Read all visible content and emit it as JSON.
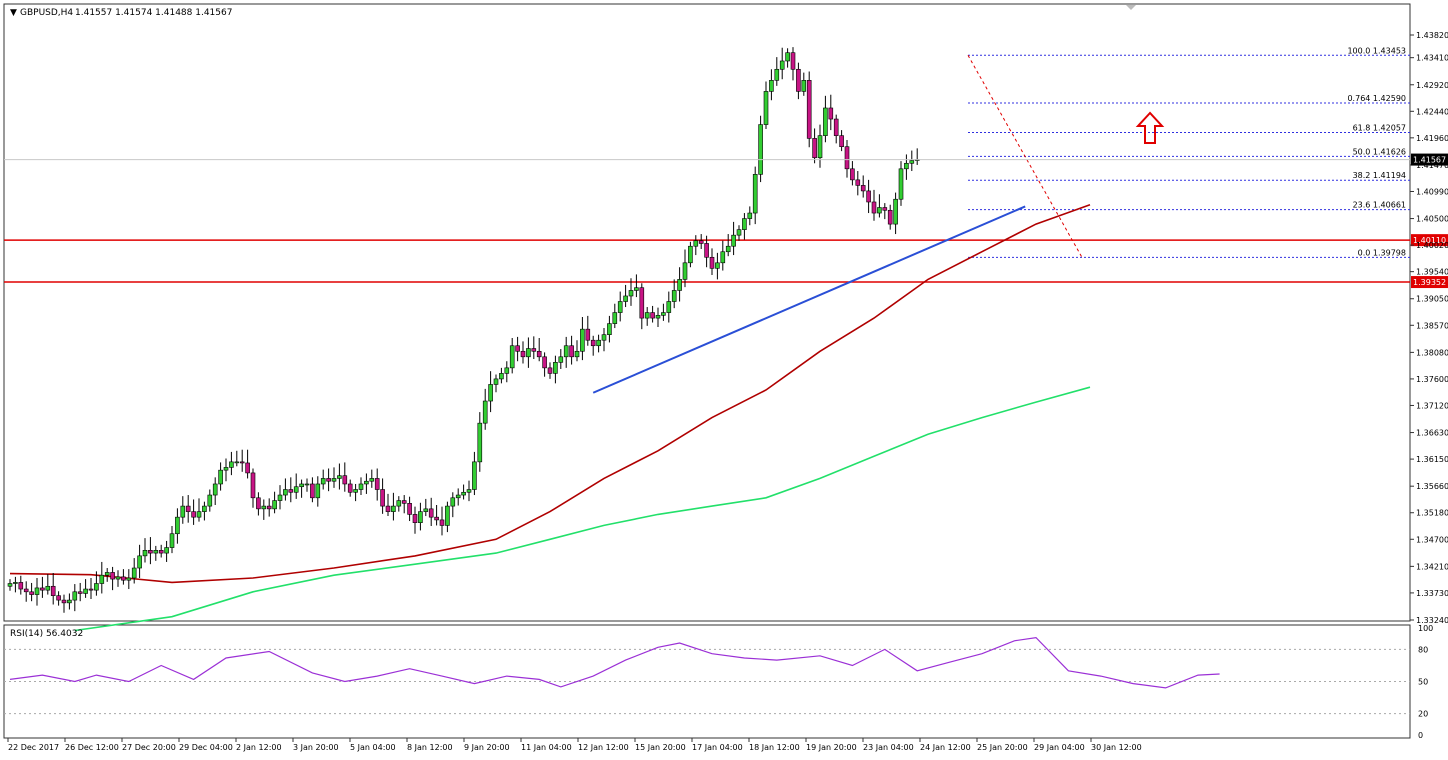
{
  "header": {
    "symbol": "GBPUSD,H4",
    "ohlc": "1.41557 1.41574 1.41488 1.41567"
  },
  "colors": {
    "bull": "#32cd32",
    "bear": "#c71585",
    "ma_fast": "#b00000",
    "ma_slow": "#22e06a",
    "trendline": "#2a4fd6",
    "support": "#e00000",
    "fib": "#3030e0",
    "rsi": "#9b30d6",
    "arrow": "#e00000"
  },
  "chart_data": {
    "type": "candlestick",
    "instrument": "GBPUSD",
    "timeframe": "H4",
    "ylim": [
      1.3324,
      1.4382
    ],
    "y_ticks": [
      "1.43820",
      "1.43410",
      "1.42920",
      "1.42440",
      "1.41960",
      "1.41470",
      "1.40990",
      "1.40500",
      "1.40020",
      "1.39540",
      "1.39050",
      "1.38570",
      "1.38080",
      "1.37600",
      "1.37120",
      "1.36630",
      "1.36150",
      "1.35660",
      "1.35180",
      "1.34700",
      "1.34210",
      "1.33730",
      "1.33240"
    ],
    "x_labels": [
      "22 Dec 2017",
      "26 Dec 12:00",
      "27 Dec 20:00",
      "29 Dec 04:00",
      "2 Jan 12:00",
      "3 Jan 20:00",
      "5 Jan 04:00",
      "8 Jan 12:00",
      "9 Jan 20:00",
      "11 Jan 04:00",
      "12 Jan 12:00",
      "15 Jan 20:00",
      "17 Jan 04:00",
      "18 Jan 12:00",
      "19 Jan 20:00",
      "23 Jan 04:00",
      "24 Jan 12:00",
      "25 Jan 20:00",
      "29 Jan 04:00",
      "30 Jan 12:00"
    ],
    "current_price": "1.41567",
    "closes": [
      1.339,
      1.3392,
      1.338,
      1.3375,
      1.337,
      1.3382,
      1.3378,
      1.3385,
      1.3368,
      1.336,
      1.3355,
      1.336,
      1.3375,
      1.3372,
      1.338,
      1.3378,
      1.339,
      1.3405,
      1.341,
      1.3398,
      1.3402,
      1.3396,
      1.34,
      1.3418,
      1.344,
      1.345,
      1.3445,
      1.345,
      1.3445,
      1.3455,
      1.348,
      1.351,
      1.353,
      1.352,
      1.351,
      1.352,
      1.353,
      1.355,
      1.357,
      1.3595,
      1.36,
      1.361,
      1.361,
      1.3608,
      1.359,
      1.3545,
      1.3525,
      1.353,
      1.3525,
      1.354,
      1.355,
      1.356,
      1.3555,
      1.3565,
      1.357,
      1.357,
      1.3545,
      1.357,
      1.358,
      1.3575,
      1.358,
      1.3585,
      1.357,
      1.3555,
      1.356,
      1.357,
      1.3575,
      1.358,
      1.356,
      1.353,
      1.352,
      1.353,
      1.354,
      1.3535,
      1.3515,
      1.35,
      1.352,
      1.3525,
      1.351,
      1.3505,
      1.3495,
      1.353,
      1.3545,
      1.355,
      1.3555,
      1.356,
      1.361,
      1.368,
      1.372,
      1.375,
      1.376,
      1.377,
      1.378,
      1.382,
      1.381,
      1.38,
      1.3815,
      1.381,
      1.38,
      1.378,
      1.377,
      1.379,
      1.38,
      1.382,
      1.38,
      1.381,
      1.385,
      1.383,
      1.382,
      1.383,
      1.384,
      1.386,
      1.388,
      1.39,
      1.391,
      1.392,
      1.3925,
      1.387,
      1.388,
      1.387,
      1.3875,
      1.388,
      1.39,
      1.392,
      1.394,
      1.397,
      1.4,
      1.401,
      1.4005,
      1.398,
      1.396,
      1.397,
      1.399,
      1.4,
      1.402,
      1.403,
      1.405,
      1.406,
      1.413,
      1.422,
      1.428,
      1.43,
      1.432,
      1.4335,
      1.435,
      1.432,
      1.428,
      1.43,
      1.4195,
      1.416,
      1.42,
      1.425,
      1.423,
      1.42,
      1.418,
      1.414,
      1.412,
      1.411,
      1.41,
      1.408,
      1.406,
      1.407,
      1.4065,
      1.404,
      1.4085,
      1.414,
      1.415,
      1.4155,
      1.4157
    ],
    "fib_levels": [
      {
        "label": "100.0 1.43453",
        "price": 1.43453
      },
      {
        "label": "0.764 1.42590",
        "price": 1.4259
      },
      {
        "label": "61.8 1.42057",
        "price": 1.42057
      },
      {
        "label": "50.0 1.41626",
        "price": 1.41626
      },
      {
        "label": "38.2 1.41194",
        "price": 1.41194
      },
      {
        "label": "23.6 1.40661",
        "price": 1.40661
      },
      {
        "label": "0.0 1.39798",
        "price": 1.39798
      }
    ],
    "support_levels": [
      {
        "label": "1.40110",
        "price": 1.4011
      },
      {
        "label": "1.39352",
        "price": 1.39352
      }
    ],
    "trendline": {
      "start": {
        "bar": 108,
        "price": 1.3735
      },
      "end": {
        "bar": 188,
        "price": 1.4072
      }
    },
    "moving_averages": [
      {
        "points": [
          [
            0,
            1.3408
          ],
          [
            15,
            1.3406
          ],
          [
            30,
            1.3392
          ],
          [
            45,
            1.34
          ],
          [
            60,
            1.3418
          ],
          [
            75,
            1.344
          ],
          [
            90,
            1.347
          ],
          [
            100,
            1.352
          ],
          [
            110,
            1.358
          ],
          [
            120,
            1.363
          ],
          [
            130,
            1.369
          ],
          [
            140,
            1.374
          ],
          [
            150,
            1.381
          ],
          [
            160,
            1.387
          ],
          [
            170,
            1.394
          ],
          [
            180,
            1.399
          ],
          [
            190,
            1.404
          ],
          [
            200,
            1.4075
          ]
        ]
      },
      {
        "points": [
          [
            12,
            1.3305
          ],
          [
            30,
            1.333
          ],
          [
            45,
            1.3375
          ],
          [
            60,
            1.3405
          ],
          [
            75,
            1.3425
          ],
          [
            90,
            1.3445
          ],
          [
            100,
            1.347
          ],
          [
            110,
            1.3495
          ],
          [
            120,
            1.3515
          ],
          [
            130,
            1.353
          ],
          [
            140,
            1.3545
          ],
          [
            150,
            1.358
          ],
          [
            160,
            1.362
          ],
          [
            170,
            1.366
          ],
          [
            180,
            1.369
          ],
          [
            190,
            1.3718
          ],
          [
            200,
            1.3745
          ]
        ]
      }
    ],
    "rsi": {
      "label": "RSI(14) 56.4032",
      "ticks": [
        "100",
        "80",
        "50",
        "20",
        "0"
      ],
      "levels": [
        80,
        50,
        20
      ],
      "values": [
        [
          0,
          52
        ],
        [
          6,
          56
        ],
        [
          12,
          50
        ],
        [
          16,
          56
        ],
        [
          22,
          50
        ],
        [
          28,
          65
        ],
        [
          34,
          52
        ],
        [
          40,
          72
        ],
        [
          48,
          78
        ],
        [
          56,
          58
        ],
        [
          62,
          50
        ],
        [
          68,
          55
        ],
        [
          74,
          62
        ],
        [
          80,
          55
        ],
        [
          86,
          48
        ],
        [
          92,
          55
        ],
        [
          98,
          52
        ],
        [
          102,
          45
        ],
        [
          108,
          55
        ],
        [
          114,
          70
        ],
        [
          120,
          82
        ],
        [
          124,
          86
        ],
        [
          130,
          76
        ],
        [
          136,
          72
        ],
        [
          142,
          70
        ],
        [
          150,
          74
        ],
        [
          156,
          65
        ],
        [
          162,
          80
        ],
        [
          168,
          60
        ],
        [
          174,
          68
        ],
        [
          180,
          76
        ],
        [
          186,
          88
        ],
        [
          190,
          91
        ],
        [
          196,
          60
        ],
        [
          202,
          55
        ],
        [
          208,
          48
        ],
        [
          214,
          44
        ],
        [
          220,
          56
        ],
        [
          224,
          57
        ]
      ]
    }
  }
}
